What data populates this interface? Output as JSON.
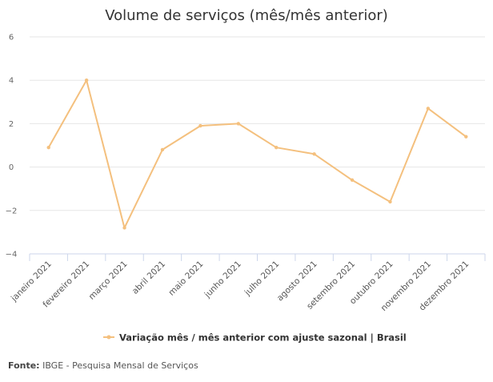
{
  "chart_data": {
    "type": "line",
    "title": "Volume de serviços (mês/mês anterior)",
    "categories": [
      "janeiro 2021",
      "fevereiro 2021",
      "março 2021",
      "abril 2021",
      "maio 2021",
      "junho 2021",
      "julho 2021",
      "agosto 2021",
      "setembro 2021",
      "outubro 2021",
      "novembro 2021",
      "dezembro 2021"
    ],
    "series": [
      {
        "name": "Variação mês / mês anterior com ajuste sazonal | Brasil",
        "values": [
          0.9,
          4.0,
          -2.8,
          0.8,
          1.9,
          2.0,
          0.9,
          0.6,
          -0.6,
          -1.6,
          2.7,
          1.4
        ],
        "color": "#f4c07e"
      }
    ],
    "ylim": [
      -4,
      6
    ],
    "yticks": [
      "6",
      "4",
      "2",
      "0",
      "−2",
      "−4"
    ],
    "ytick_values": [
      6,
      4,
      2,
      0,
      -2,
      -4
    ],
    "grid": true,
    "legend_position": "bottom"
  },
  "source": {
    "label": "Fonte:",
    "text": " IBGE - Pesquisa Mensal de Serviços"
  }
}
